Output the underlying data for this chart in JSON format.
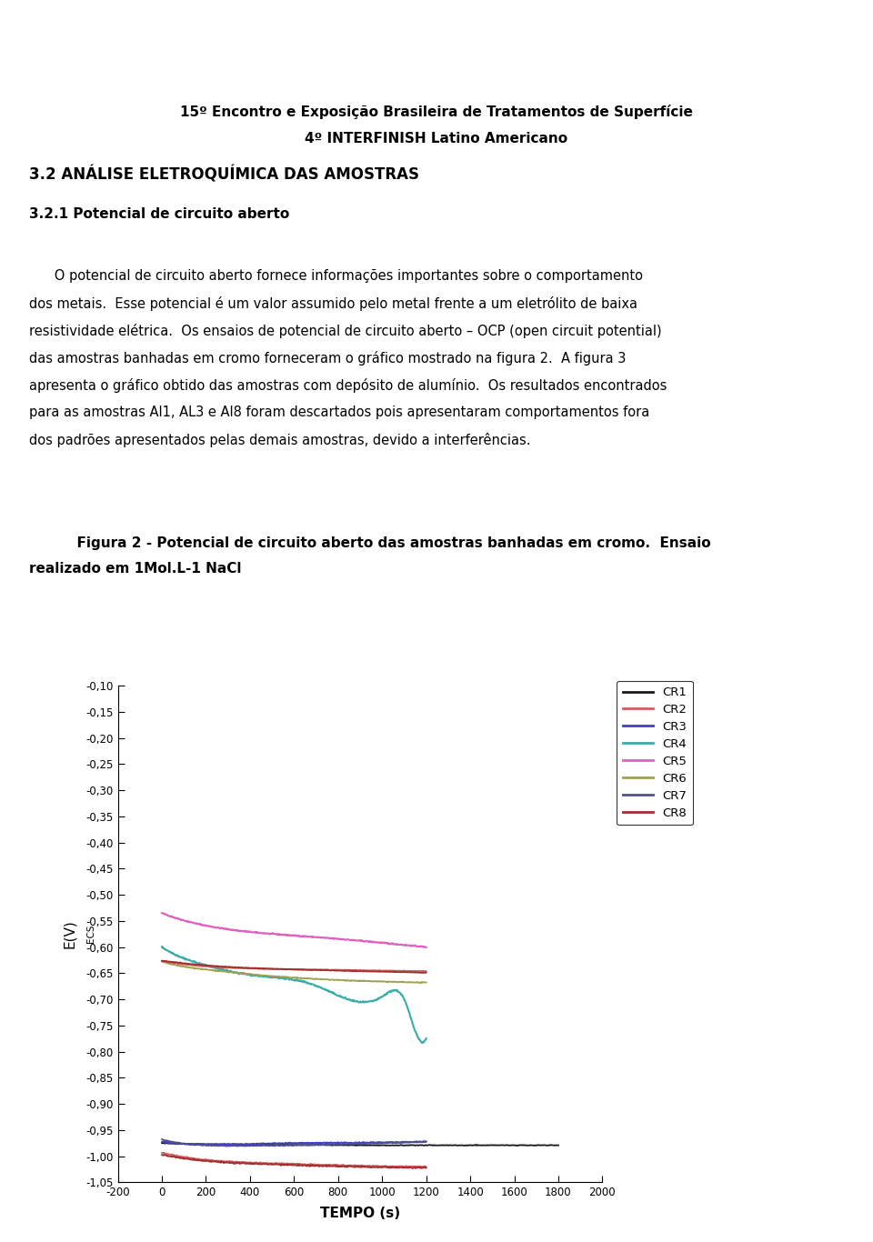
{
  "title_line1": "15º Encontro e Exposição Brasileira de Tratamentos de Superfície",
  "title_line2": "4º INTERFINISH Latino Americano",
  "section_title": "3.2 ANÁLISE ELETROQUÍMICA DAS AMOSTRAS",
  "subsection_title": "3.2.1 Potencial de circuito aberto",
  "para_line1": "      O potencial de circuito aberto fornece informações importantes sobre o comportamento",
  "para_line2": "dos metais.  Esse potencial é um valor assumido pelo metal frente a um eletrólito de baixa",
  "para_line3": "resistividade elétrica.  Os ensaios de potencial de circuito aberto – OCP (open circuit potential)",
  "para_line4": "das amostras banhadas em cromo forneceram o gráfico mostrado na figura 2.  A figura 3",
  "para_line5": "apresenta o gráfico obtido das amostras com depósito de alumínio.  Os resultados encontrados",
  "para_line6": "para as amostras Al1, AL3 e Al8 foram descartados pois apresentaram comportamentos fora",
  "para_line7": "dos padrões apresentados pelas demais amostras, devido a interferências.",
  "fig_cap1": "      Figura 2 - Potencial de circuito aberto das amostras banhadas em cromo.  Ensaio",
  "fig_cap2": "realizado em 1Mol.L-1 NaCl",
  "xlabel": "TEMPO (s)",
  "xlim": [
    -200,
    2000
  ],
  "ylim": [
    -1.05,
    -0.1
  ],
  "xticks": [
    -200,
    0,
    200,
    400,
    600,
    800,
    1000,
    1200,
    1400,
    1600,
    1800,
    2000
  ],
  "yticks": [
    -1.05,
    -1.0,
    -0.95,
    -0.9,
    -0.85,
    -0.8,
    -0.75,
    -0.7,
    -0.65,
    -0.6,
    -0.55,
    -0.5,
    -0.45,
    -0.4,
    -0.35,
    -0.3,
    -0.25,
    -0.2,
    -0.15,
    -0.1
  ],
  "colors": {
    "CR1": "#1a1a1a",
    "CR2": "#d06060",
    "CR3": "#4040c0",
    "CR4": "#3aada8",
    "CR5": "#e060c0",
    "CR6": "#a0a050",
    "CR7": "#505090",
    "CR8": "#a03030"
  },
  "bg": "#ffffff"
}
